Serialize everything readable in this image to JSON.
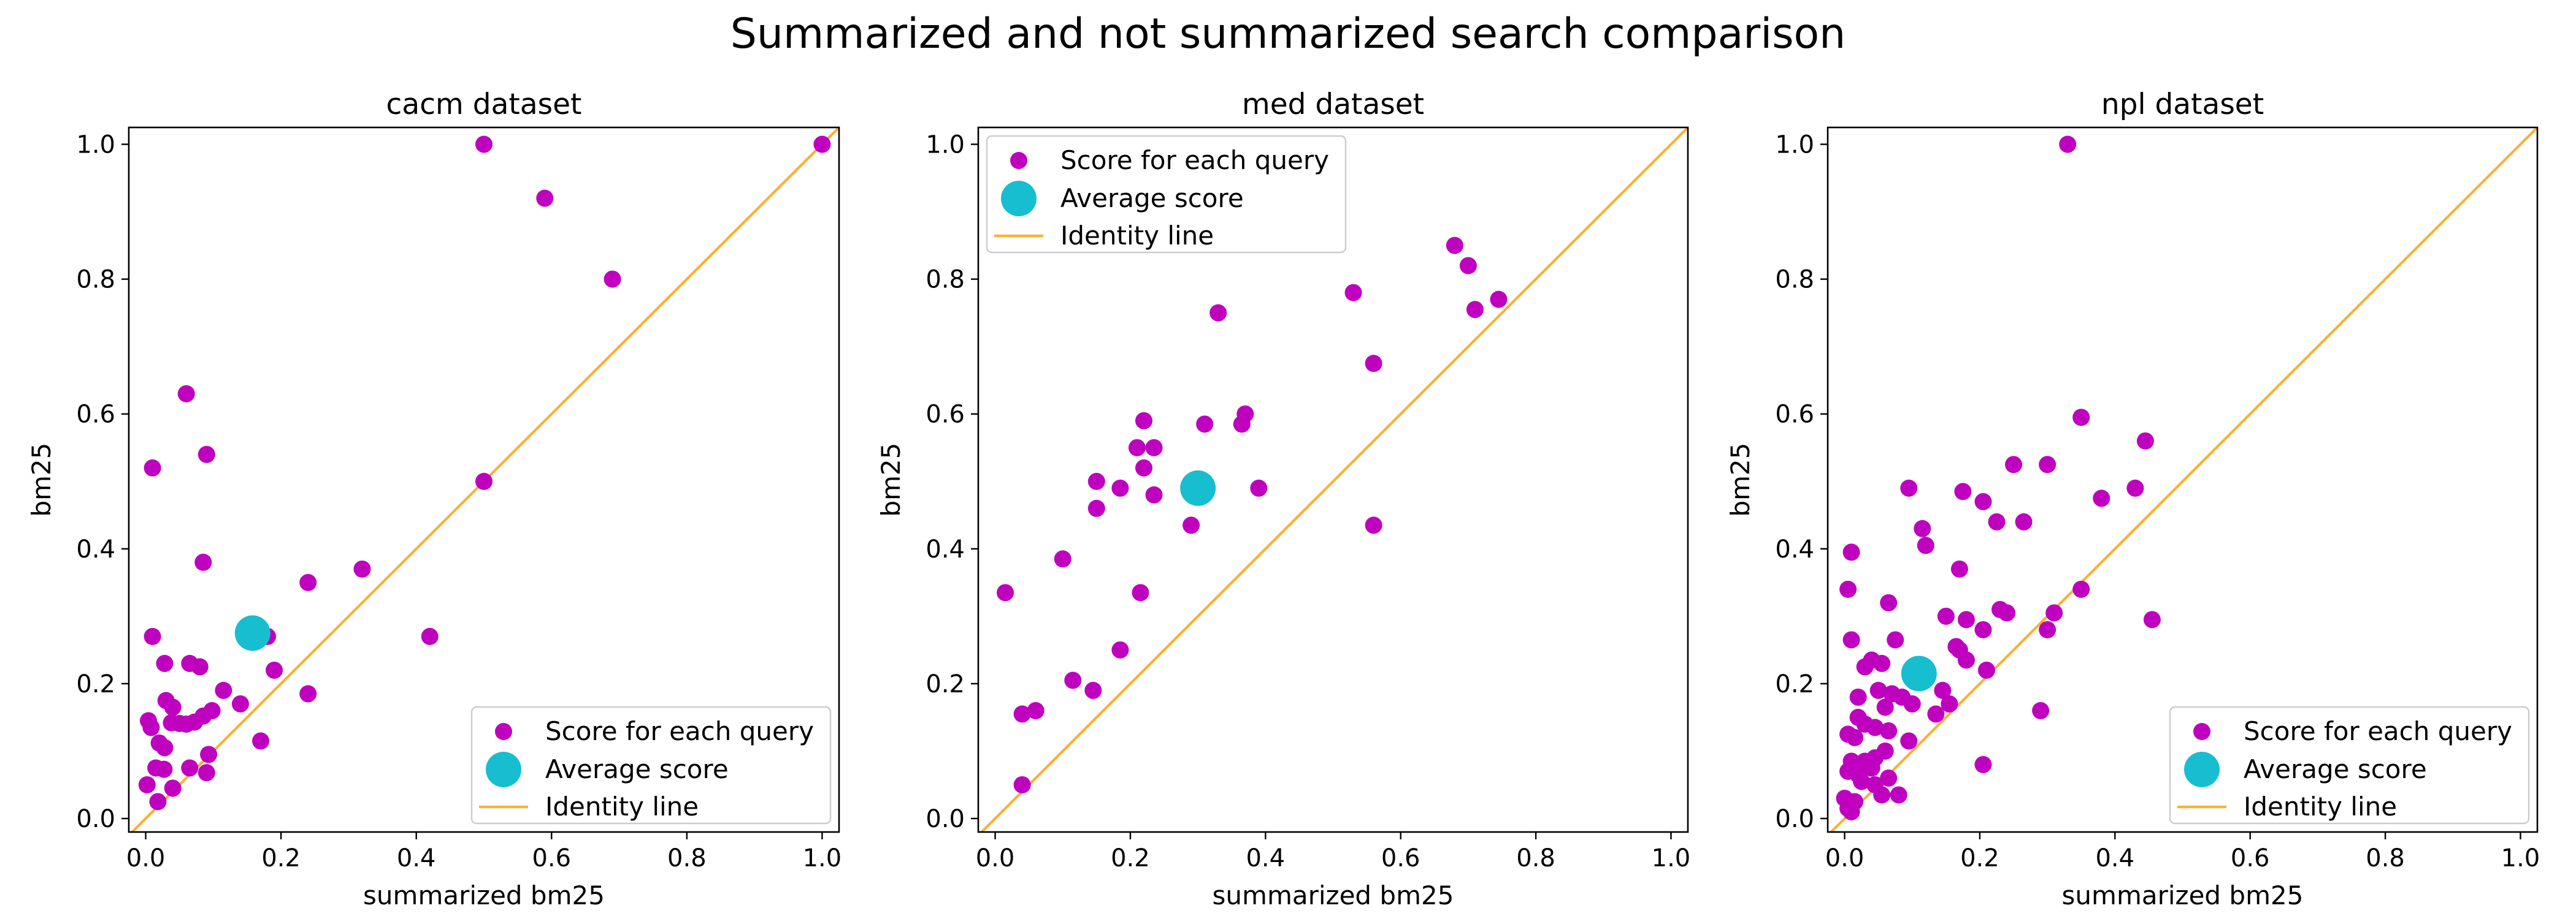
{
  "suptitle": "Summarized and not summarized search comparison",
  "colors": {
    "scatter": "#bf00bf",
    "average": "#17becf",
    "identity": "#fbb034"
  },
  "chart_data": [
    {
      "type": "scatter",
      "title": "cacm dataset",
      "xlabel": "summarized bm25",
      "ylabel": "bm25",
      "xlim": [
        -0.025,
        1.025
      ],
      "ylim": [
        -0.02,
        1.025
      ],
      "xticks": [
        "0.0",
        "0.2",
        "0.4",
        "0.6",
        "0.8",
        "1.0"
      ],
      "yticks": [
        "0.0",
        "0.2",
        "0.4",
        "0.6",
        "0.8",
        "1.0"
      ],
      "legend_position": "lower-right",
      "legend": [
        "Score for each query",
        "Average score",
        "Identity line"
      ],
      "points": [
        [
          0.5,
          1.0
        ],
        [
          0.59,
          0.92
        ],
        [
          0.69,
          0.8
        ],
        [
          1.0,
          1.0
        ],
        [
          0.5,
          0.5
        ],
        [
          0.06,
          0.63
        ],
        [
          0.01,
          0.52
        ],
        [
          0.09,
          0.54
        ],
        [
          0.085,
          0.38
        ],
        [
          0.32,
          0.37
        ],
        [
          0.24,
          0.35
        ],
        [
          0.42,
          0.27
        ],
        [
          0.01,
          0.27
        ],
        [
          0.18,
          0.27
        ],
        [
          0.028,
          0.23
        ],
        [
          0.065,
          0.23
        ],
        [
          0.08,
          0.225
        ],
        [
          0.19,
          0.22
        ],
        [
          0.115,
          0.19
        ],
        [
          0.24,
          0.185
        ],
        [
          0.14,
          0.17
        ],
        [
          0.03,
          0.175
        ],
        [
          0.04,
          0.165
        ],
        [
          0.098,
          0.16
        ],
        [
          0.085,
          0.152
        ],
        [
          0.038,
          0.142
        ],
        [
          0.05,
          0.141
        ],
        [
          0.06,
          0.14
        ],
        [
          0.072,
          0.143
        ],
        [
          0.004,
          0.145
        ],
        [
          0.008,
          0.135
        ],
        [
          0.17,
          0.115
        ],
        [
          0.02,
          0.112
        ],
        [
          0.028,
          0.105
        ],
        [
          0.093,
          0.095
        ],
        [
          0.065,
          0.075
        ],
        [
          0.015,
          0.075
        ],
        [
          0.027,
          0.073
        ],
        [
          0.09,
          0.068
        ],
        [
          0.002,
          0.05
        ],
        [
          0.04,
          0.045
        ],
        [
          0.018,
          0.025
        ]
      ],
      "average": [
        0.158,
        0.275
      ]
    },
    {
      "type": "scatter",
      "title": "med dataset",
      "xlabel": "summarized bm25",
      "ylabel": "bm25",
      "xlim": [
        -0.025,
        1.025
      ],
      "ylim": [
        -0.02,
        1.025
      ],
      "xticks": [
        "0.0",
        "0.2",
        "0.4",
        "0.6",
        "0.8",
        "1.0"
      ],
      "yticks": [
        "0.0",
        "0.2",
        "0.4",
        "0.6",
        "0.8",
        "1.0"
      ],
      "legend_position": "upper-left",
      "legend": [
        "Score for each query",
        "Average score",
        "Identity line"
      ],
      "points": [
        [
          0.68,
          0.85
        ],
        [
          0.7,
          0.82
        ],
        [
          0.745,
          0.77
        ],
        [
          0.71,
          0.755
        ],
        [
          0.53,
          0.78
        ],
        [
          0.33,
          0.75
        ],
        [
          0.56,
          0.675
        ],
        [
          0.37,
          0.6
        ],
        [
          0.365,
          0.585
        ],
        [
          0.22,
          0.59
        ],
        [
          0.31,
          0.585
        ],
        [
          0.21,
          0.55
        ],
        [
          0.235,
          0.55
        ],
        [
          0.22,
          0.52
        ],
        [
          0.15,
          0.5
        ],
        [
          0.185,
          0.49
        ],
        [
          0.39,
          0.49
        ],
        [
          0.235,
          0.48
        ],
        [
          0.15,
          0.46
        ],
        [
          0.29,
          0.435
        ],
        [
          0.56,
          0.435
        ],
        [
          0.1,
          0.385
        ],
        [
          0.015,
          0.335
        ],
        [
          0.215,
          0.335
        ],
        [
          0.185,
          0.25
        ],
        [
          0.115,
          0.205
        ],
        [
          0.145,
          0.19
        ],
        [
          0.04,
          0.155
        ],
        [
          0.06,
          0.16
        ],
        [
          0.04,
          0.05
        ]
      ],
      "average": [
        0.3,
        0.49
      ]
    },
    {
      "type": "scatter",
      "title": "npl dataset",
      "xlabel": "summarized bm25",
      "ylabel": "bm25",
      "xlim": [
        -0.025,
        1.025
      ],
      "ylim": [
        -0.02,
        1.025
      ],
      "xticks": [
        "0.0",
        "0.2",
        "0.4",
        "0.6",
        "0.8",
        "1.0"
      ],
      "yticks": [
        "0.0",
        "0.2",
        "0.4",
        "0.6",
        "0.8",
        "1.0"
      ],
      "legend_position": "lower-right",
      "legend": [
        "Score for each query",
        "Average score",
        "Identity line"
      ],
      "points": [
        [
          0.33,
          1.0
        ],
        [
          0.35,
          0.595
        ],
        [
          0.445,
          0.56
        ],
        [
          0.25,
          0.525
        ],
        [
          0.3,
          0.525
        ],
        [
          0.095,
          0.49
        ],
        [
          0.175,
          0.485
        ],
        [
          0.205,
          0.47
        ],
        [
          0.38,
          0.475
        ],
        [
          0.43,
          0.49
        ],
        [
          0.225,
          0.44
        ],
        [
          0.265,
          0.44
        ],
        [
          0.115,
          0.43
        ],
        [
          0.12,
          0.405
        ],
        [
          0.01,
          0.395
        ],
        [
          0.17,
          0.37
        ],
        [
          0.005,
          0.34
        ],
        [
          0.35,
          0.34
        ],
        [
          0.065,
          0.32
        ],
        [
          0.31,
          0.305
        ],
        [
          0.23,
          0.31
        ],
        [
          0.24,
          0.305
        ],
        [
          0.15,
          0.3
        ],
        [
          0.18,
          0.295
        ],
        [
          0.205,
          0.28
        ],
        [
          0.3,
          0.28
        ],
        [
          0.455,
          0.295
        ],
        [
          0.01,
          0.265
        ],
        [
          0.075,
          0.265
        ],
        [
          0.165,
          0.255
        ],
        [
          0.17,
          0.25
        ],
        [
          0.18,
          0.235
        ],
        [
          0.04,
          0.235
        ],
        [
          0.055,
          0.23
        ],
        [
          0.03,
          0.225
        ],
        [
          0.21,
          0.22
        ],
        [
          0.145,
          0.19
        ],
        [
          0.05,
          0.19
        ],
        [
          0.07,
          0.185
        ],
        [
          0.085,
          0.18
        ],
        [
          0.02,
          0.18
        ],
        [
          0.1,
          0.17
        ],
        [
          0.155,
          0.17
        ],
        [
          0.06,
          0.165
        ],
        [
          0.29,
          0.16
        ],
        [
          0.135,
          0.155
        ],
        [
          0.02,
          0.15
        ],
        [
          0.03,
          0.14
        ],
        [
          0.045,
          0.135
        ],
        [
          0.065,
          0.13
        ],
        [
          0.005,
          0.125
        ],
        [
          0.015,
          0.12
        ],
        [
          0.095,
          0.115
        ],
        [
          0.06,
          0.1
        ],
        [
          0.045,
          0.09
        ],
        [
          0.01,
          0.085
        ],
        [
          0.03,
          0.085
        ],
        [
          0.04,
          0.075
        ],
        [
          0.205,
          0.08
        ],
        [
          0.005,
          0.07
        ],
        [
          0.02,
          0.065
        ],
        [
          0.065,
          0.06
        ],
        [
          0.025,
          0.055
        ],
        [
          0.045,
          0.05
        ],
        [
          0.08,
          0.035
        ],
        [
          0.055,
          0.035
        ],
        [
          0.0,
          0.03
        ],
        [
          0.015,
          0.025
        ],
        [
          0.005,
          0.015
        ],
        [
          0.01,
          0.01
        ]
      ],
      "average": [
        0.11,
        0.215
      ]
    }
  ]
}
